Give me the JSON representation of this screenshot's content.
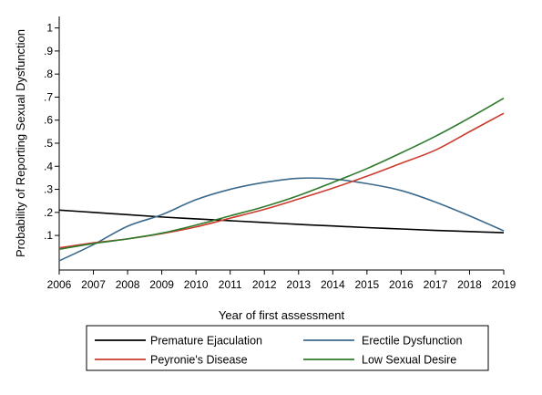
{
  "chart_data": {
    "type": "line",
    "xlabel": "Year of first assessment",
    "ylabel": "Probability of Reporting Sexual Dysfunction",
    "x": [
      2006,
      2007,
      2008,
      2009,
      2010,
      2011,
      2012,
      2013,
      2014,
      2015,
      2016,
      2017,
      2018,
      2019
    ],
    "x_tick_labels": [
      "2006",
      "2007",
      "2008",
      "2009",
      "2010",
      "2011",
      "2012",
      "2013",
      "2014",
      "2015",
      "2016",
      "2017",
      "2018",
      "2019"
    ],
    "y_ticks": [
      0.1,
      0.2,
      0.3,
      0.4,
      0.5,
      0.6,
      0.7,
      0.8,
      0.9,
      1
    ],
    "y_tick_labels": [
      ".1",
      ".2",
      ".3",
      ".4",
      ".5",
      ".6",
      ".7",
      ".8",
      ".9",
      "1"
    ],
    "xlim": [
      2006,
      2019
    ],
    "ylim": [
      -0.05,
      1.05
    ],
    "grid": false,
    "legend_position": "bottom",
    "series": [
      {
        "name": "Premature Ejaculation",
        "color": "#000000",
        "values": [
          0.21,
          0.2,
          0.19,
          0.18,
          0.172,
          0.164,
          0.156,
          0.148,
          0.141,
          0.134,
          0.128,
          0.122,
          0.117,
          0.112
        ]
      },
      {
        "name": "Erectile Dysfunction",
        "color": "#3d6a8c",
        "values": [
          -0.01,
          0.06,
          0.14,
          0.19,
          0.255,
          0.3,
          0.33,
          0.348,
          0.345,
          0.325,
          0.295,
          0.245,
          0.185,
          0.12
        ]
      },
      {
        "name": "Peyronie's Disease",
        "color": "#cc3b2e",
        "values": [
          0.046,
          0.068,
          0.085,
          0.108,
          0.137,
          0.175,
          0.213,
          0.258,
          0.305,
          0.357,
          0.413,
          0.47,
          0.55,
          0.63
        ]
      },
      {
        "name": "Low Sexual Desire",
        "color": "#2e7a2b",
        "values": [
          0.04,
          0.065,
          0.085,
          0.11,
          0.145,
          0.185,
          0.225,
          0.273,
          0.33,
          0.39,
          0.458,
          0.53,
          0.61,
          0.695
        ]
      }
    ]
  }
}
